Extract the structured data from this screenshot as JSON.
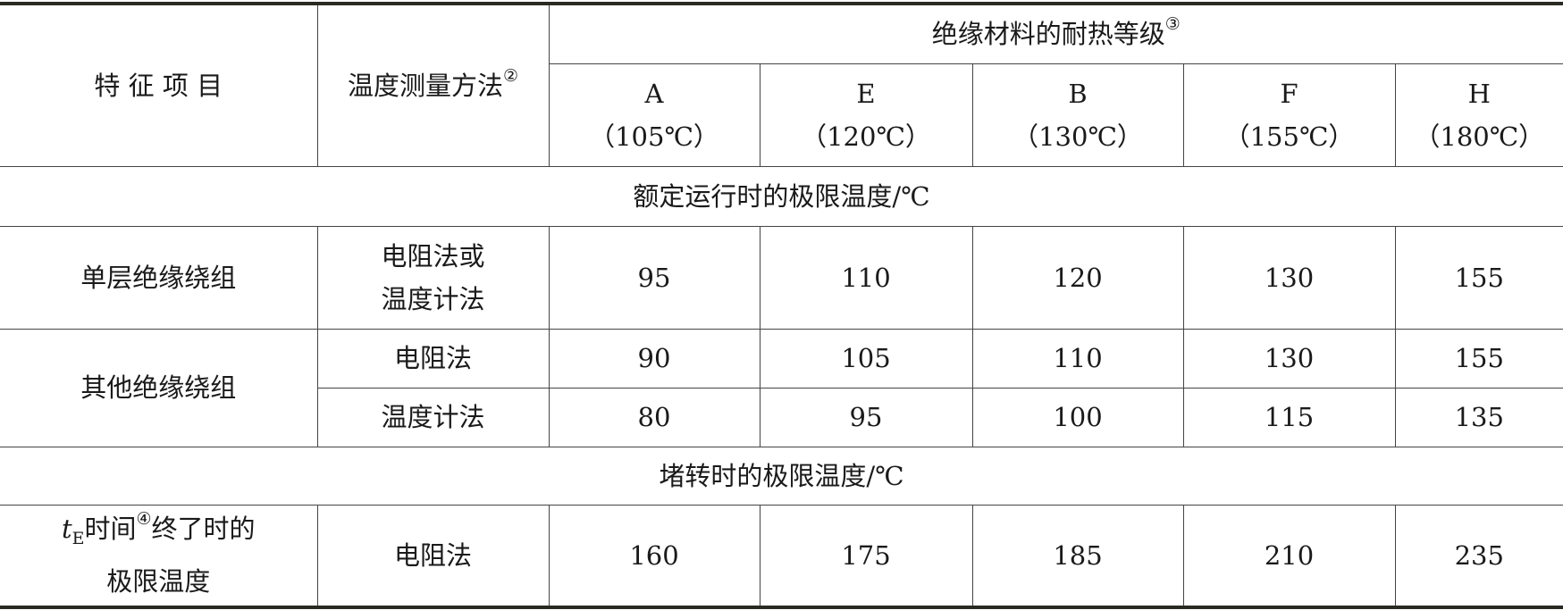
{
  "header": {
    "feature": "特 征 项 目",
    "method": "温度测量方法",
    "method_note": "②",
    "class_group": "绝缘材料的耐热等级",
    "class_group_note": "③",
    "classes": [
      {
        "letter": "A",
        "temp": "（105℃）"
      },
      {
        "letter": "E",
        "temp": "（120℃）"
      },
      {
        "letter": "B",
        "temp": "（130℃）"
      },
      {
        "letter": "F",
        "temp": "（155℃）"
      },
      {
        "letter": "H",
        "temp": "（180℃）"
      }
    ]
  },
  "section1": {
    "title": "额定运行时的极限温度/℃",
    "rows": [
      {
        "feature": "单层绝缘绕组",
        "method_line1": "电阻法或",
        "method_line2": "温度计法",
        "values": [
          "95",
          "110",
          "120",
          "130",
          "155"
        ]
      },
      {
        "feature": "其他绝缘绕组",
        "method": "电阻法",
        "values": [
          "90",
          "105",
          "110",
          "130",
          "155"
        ]
      },
      {
        "method": "温度计法",
        "values": [
          "80",
          "95",
          "100",
          "115",
          "135"
        ]
      }
    ]
  },
  "section2": {
    "title": "堵转时的极限温度/℃",
    "row": {
      "feature_var": "t",
      "feature_sub": "E",
      "feature_a": "时间",
      "feature_note": "④",
      "feature_b": "终了时的",
      "feature_line2": "极限温度",
      "method": "电阻法",
      "values": [
        "160",
        "175",
        "185",
        "210",
        "235"
      ]
    }
  }
}
